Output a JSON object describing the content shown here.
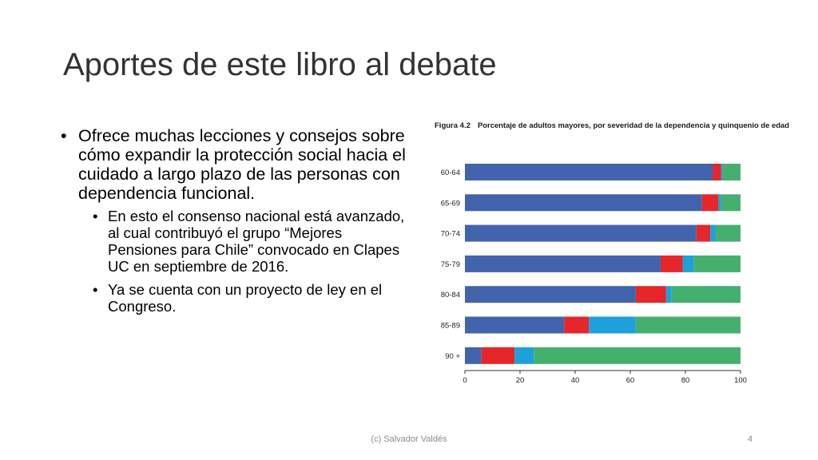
{
  "slide": {
    "title": "Aportes de este libro al debate",
    "bullets": [
      "Ofrece muchas lecciones y consejos sobre cómo expandir la protección social hacia el cuidado a largo plazo de las personas con dependencia funcional."
    ],
    "sub_bullets": [
      "En esto el consenso nacional está avanzado, al cual contribuyó el grupo “Mejores Pensiones para Chile” convocado en Clapes UC en septiembre de 2016.",
      "Ya se cuenta con un proyecto de ley en el Congreso."
    ],
    "bullet_glyph": "•",
    "footer": "(c) Salvador Valdés",
    "page_number": "4"
  },
  "chart_data": {
    "type": "bar",
    "orientation": "horizontal",
    "stacked": true,
    "figure_label": "Figura 4.2",
    "title": "Porcentaje de adultos mayores, por severidad de la dependencia y quinquenio de edad",
    "categories": [
      "60-64",
      "65-69",
      "70-74",
      "75-79",
      "80-84",
      "85-89",
      "90 +"
    ],
    "series": [
      {
        "values": [
          90,
          86,
          84,
          71,
          62,
          36,
          6
        ],
        "color": "#4264ad"
      },
      {
        "values": [
          3,
          6,
          5,
          8,
          11,
          9,
          12
        ],
        "color": "#e5262b"
      },
      {
        "values": [
          0.5,
          1,
          2,
          4,
          2,
          17,
          7
        ],
        "color": "#1fa0db"
      },
      {
        "values": [
          6.5,
          7,
          9,
          17,
          25,
          38,
          75
        ],
        "color": "#45b06e"
      }
    ],
    "xticks": [
      0,
      20,
      40,
      60,
      80,
      100
    ],
    "xlim": [
      0,
      100
    ],
    "legend": "none",
    "grid": false
  }
}
